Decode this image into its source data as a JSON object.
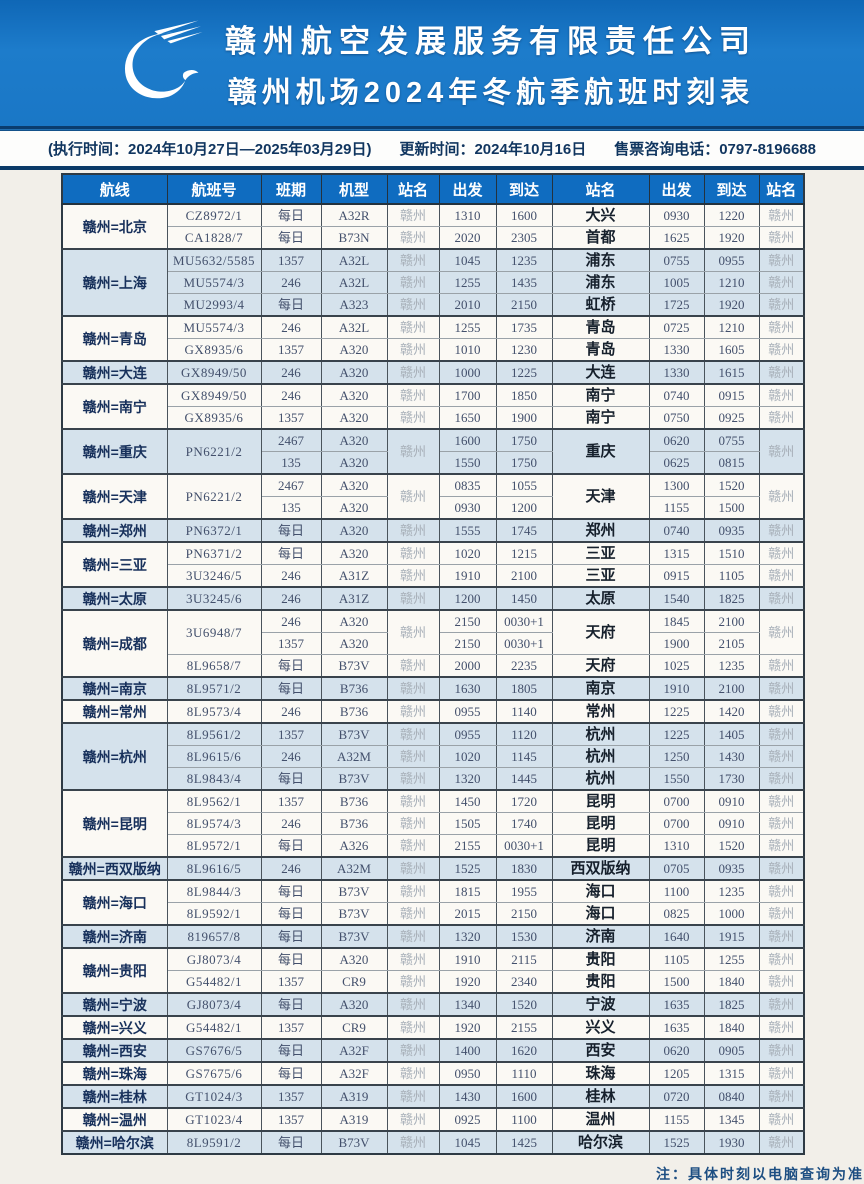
{
  "banner": {
    "company": "赣州航空发展服务有限责任公司",
    "title": "赣州机场2024年冬航季航班时刻表",
    "logo": "swoosh-bird-logo"
  },
  "info_bar": {
    "execution": "(执行时间：2024年10月27日—2025年03月29日)",
    "update": "更新时间：2024年10月16日",
    "phone": "售票咨询电话：0797-8196688"
  },
  "colors": {
    "banner_blue": "#1a77c6",
    "header_blue": "#0f6cc0",
    "row_white": "#fbf9f4",
    "row_blue": "#d5e2ec",
    "navy_rule": "#0b3a68",
    "route_text": "#17305b",
    "watermark_text": "#a7afb8"
  },
  "table": {
    "columns": [
      "航线",
      "航班号",
      "班期",
      "机型",
      "站名",
      "出发",
      "到达",
      "站名",
      "出发",
      "到达",
      "站名"
    ],
    "groups": [
      {
        "route": "赣州=北京",
        "rows": [
          [
            "CZ8972/1",
            "每日",
            "A32R",
            "赣州",
            "1310",
            "1600",
            "大兴",
            "0930",
            "1220",
            "赣州"
          ],
          [
            "CA1828/7",
            "每日",
            "B73N",
            "赣州",
            "2020",
            "2305",
            "首都",
            "1625",
            "1920",
            "赣州"
          ]
        ]
      },
      {
        "route": "赣州=上海",
        "rows": [
          [
            "MU5632/5585",
            "1357",
            "A32L",
            "赣州",
            "1045",
            "1235",
            "浦东",
            "0755",
            "0955",
            "赣州"
          ],
          [
            "MU5574/3",
            "246",
            "A32L",
            "赣州",
            "1255",
            "1435",
            "浦东",
            "1005",
            "1210",
            "赣州"
          ],
          [
            "MU2993/4",
            "每日",
            "A323",
            "赣州",
            "2010",
            "2150",
            "虹桥",
            "1725",
            "1920",
            "赣州"
          ]
        ]
      },
      {
        "route": "赣州=青岛",
        "rows": [
          [
            "MU5574/3",
            "246",
            "A32L",
            "赣州",
            "1255",
            "1735",
            "青岛",
            "0725",
            "1210",
            "赣州"
          ],
          [
            "GX8935/6",
            "1357",
            "A320",
            "赣州",
            "1010",
            "1230",
            "青岛",
            "1330",
            "1605",
            "赣州"
          ]
        ]
      },
      {
        "route": "赣州=大连",
        "rows": [
          [
            "GX8949/50",
            "246",
            "A320",
            "赣州",
            "1000",
            "1225",
            "大连",
            "1330",
            "1615",
            "赣州"
          ]
        ]
      },
      {
        "route": "赣州=南宁",
        "rows": [
          [
            "GX8949/50",
            "246",
            "A320",
            "赣州",
            "1700",
            "1850",
            "南宁",
            "0740",
            "0915",
            "赣州"
          ],
          [
            "GX8935/6",
            "1357",
            "A320",
            "赣州",
            "1650",
            "1900",
            "南宁",
            "0750",
            "0925",
            "赣州"
          ]
        ]
      },
      {
        "route": "赣州=重庆",
        "rows": [
          [
            "PN6221/2|2",
            "2467",
            "A320",
            "赣州|2",
            "1600",
            "1750",
            "重庆|2",
            "0620",
            "0755",
            "赣州|2"
          ],
          [
            null,
            "135",
            "A320",
            null,
            "1550",
            "1750",
            null,
            "0625",
            "0815",
            null
          ]
        ]
      },
      {
        "route": "赣州=天津",
        "rows": [
          [
            "PN6221/2|2",
            "2467",
            "A320",
            "赣州|2",
            "0835",
            "1055",
            "天津|2",
            "1300",
            "1520",
            "赣州|2"
          ],
          [
            null,
            "135",
            "A320",
            null,
            "0930",
            "1200",
            null,
            "1155",
            "1500",
            null
          ]
        ]
      },
      {
        "route": "赣州=郑州",
        "rows": [
          [
            "PN6372/1",
            "每日",
            "A320",
            "赣州",
            "1555",
            "1745",
            "郑州",
            "0740",
            "0935",
            "赣州"
          ]
        ]
      },
      {
        "route": "赣州=三亚",
        "rows": [
          [
            "PN6371/2",
            "每日",
            "A320",
            "赣州",
            "1020",
            "1215",
            "三亚",
            "1315",
            "1510",
            "赣州"
          ],
          [
            "3U3246/5",
            "246",
            "A31Z",
            "赣州",
            "1910",
            "2100",
            "三亚",
            "0915",
            "1105",
            "赣州"
          ]
        ]
      },
      {
        "route": "赣州=太原",
        "rows": [
          [
            "3U3245/6",
            "246",
            "A31Z",
            "赣州",
            "1200",
            "1450",
            "太原",
            "1540",
            "1825",
            "赣州"
          ]
        ]
      },
      {
        "route": "赣州=成都",
        "rows": [
          [
            "3U6948/7|2",
            "246",
            "A320",
            "赣州|2",
            "2150",
            "0030+1",
            "天府|2",
            "1845",
            "2100",
            "赣州|2"
          ],
          [
            null,
            "1357",
            "A320",
            null,
            "2150",
            "0030+1",
            null,
            "1900",
            "2105",
            null
          ],
          [
            "8L9658/7",
            "每日",
            "B73V",
            "赣州",
            "2000",
            "2235",
            "天府",
            "1025",
            "1235",
            "赣州"
          ]
        ]
      },
      {
        "route": "赣州=南京",
        "rows": [
          [
            "8L9571/2",
            "每日",
            "B736",
            "赣州",
            "1630",
            "1805",
            "南京",
            "1910",
            "2100",
            "赣州"
          ]
        ]
      },
      {
        "route": "赣州=常州",
        "rows": [
          [
            "8L9573/4",
            "246",
            "B736",
            "赣州",
            "0955",
            "1140",
            "常州",
            "1225",
            "1420",
            "赣州"
          ]
        ]
      },
      {
        "route": "赣州=杭州",
        "rows": [
          [
            "8L9561/2",
            "1357",
            "B73V",
            "赣州",
            "0955",
            "1120",
            "杭州",
            "1225",
            "1405",
            "赣州"
          ],
          [
            "8L9615/6",
            "246",
            "A32M",
            "赣州",
            "1020",
            "1145",
            "杭州",
            "1250",
            "1430",
            "赣州"
          ],
          [
            "8L9843/4",
            "每日",
            "B73V",
            "赣州",
            "1320",
            "1445",
            "杭州",
            "1550",
            "1730",
            "赣州"
          ]
        ]
      },
      {
        "route": "赣州=昆明",
        "rows": [
          [
            "8L9562/1",
            "1357",
            "B736",
            "赣州",
            "1450",
            "1720",
            "昆明",
            "0700",
            "0910",
            "赣州"
          ],
          [
            "8L9574/3",
            "246",
            "B736",
            "赣州",
            "1505",
            "1740",
            "昆明",
            "0700",
            "0910",
            "赣州"
          ],
          [
            "8L9572/1",
            "每日",
            "A326",
            "赣州",
            "2155",
            "0030+1",
            "昆明",
            "1310",
            "1520",
            "赣州"
          ]
        ]
      },
      {
        "route": "赣州=西双版纳",
        "rows": [
          [
            "8L9616/5",
            "246",
            "A32M",
            "赣州",
            "1525",
            "1830",
            "西双版纳",
            "0705",
            "0935",
            "赣州"
          ]
        ]
      },
      {
        "route": "赣州=海口",
        "rows": [
          [
            "8L9844/3",
            "每日",
            "B73V",
            "赣州",
            "1815",
            "1955",
            "海口",
            "1100",
            "1235",
            "赣州"
          ],
          [
            "8L9592/1",
            "每日",
            "B73V",
            "赣州",
            "2015",
            "2150",
            "海口",
            "0825",
            "1000",
            "赣州"
          ]
        ]
      },
      {
        "route": "赣州=济南",
        "rows": [
          [
            "819657/8",
            "每日",
            "B73V",
            "赣州",
            "1320",
            "1530",
            "济南",
            "1640",
            "1915",
            "赣州"
          ]
        ]
      },
      {
        "route": "赣州=贵阳",
        "rows": [
          [
            "GJ8073/4",
            "每日",
            "A320",
            "赣州",
            "1910",
            "2115",
            "贵阳",
            "1105",
            "1255",
            "赣州"
          ],
          [
            "G54482/1",
            "1357",
            "CR9",
            "赣州",
            "1920",
            "2340",
            "贵阳",
            "1500",
            "1840",
            "赣州"
          ]
        ]
      },
      {
        "route": "赣州=宁波",
        "rows": [
          [
            "GJ8073/4",
            "每日",
            "A320",
            "赣州",
            "1340",
            "1520",
            "宁波",
            "1635",
            "1825",
            "赣州"
          ]
        ]
      },
      {
        "route": "赣州=兴义",
        "rows": [
          [
            "G54482/1",
            "1357",
            "CR9",
            "赣州",
            "1920",
            "2155",
            "兴义",
            "1635",
            "1840",
            "赣州"
          ]
        ]
      },
      {
        "route": "赣州=西安",
        "rows": [
          [
            "GS7676/5",
            "每日",
            "A32F",
            "赣州",
            "1400",
            "1620",
            "西安",
            "0620",
            "0905",
            "赣州"
          ]
        ]
      },
      {
        "route": "赣州=珠海",
        "rows": [
          [
            "GS7675/6",
            "每日",
            "A32F",
            "赣州",
            "0950",
            "1110",
            "珠海",
            "1205",
            "1315",
            "赣州"
          ]
        ]
      },
      {
        "route": "赣州=桂林",
        "rows": [
          [
            "GT1024/3",
            "1357",
            "A319",
            "赣州",
            "1430",
            "1600",
            "桂林",
            "0720",
            "0840",
            "赣州"
          ]
        ]
      },
      {
        "route": "赣州=温州",
        "rows": [
          [
            "GT1023/4",
            "1357",
            "A319",
            "赣州",
            "0925",
            "1100",
            "温州",
            "1155",
            "1345",
            "赣州"
          ]
        ]
      },
      {
        "route": "赣州=哈尔滨",
        "rows": [
          [
            "8L9591/2",
            "每日",
            "B73V",
            "赣州",
            "1045",
            "1425",
            "哈尔滨",
            "1525",
            "1930",
            "赣州"
          ]
        ]
      }
    ]
  },
  "note": "注：具体时刻以电脑查询为准"
}
